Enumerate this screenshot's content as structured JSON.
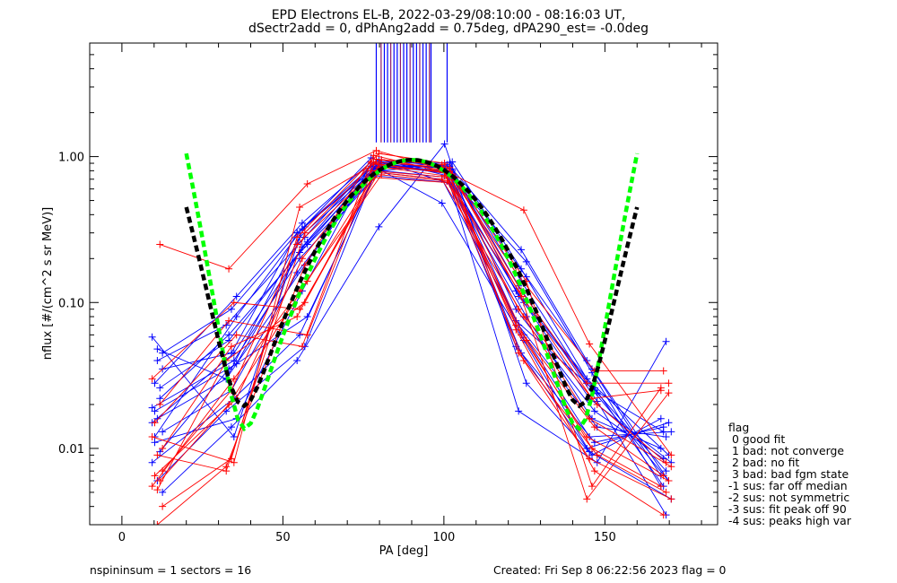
{
  "title_line1": "EPD Electrons EL-B, 2022-03-29/08:10:00 - 08:16:03 UT,",
  "title_line2": "dSectr2add = 0, dPhAng2add = 0.75deg, dPA290_est=  -0.0deg",
  "footer_left": "nspininsum =  1  sectors = 16",
  "footer_right": "Created: Fri Sep  8 06:22:56 2023   flag = 0",
  "legend": {
    "title": "flag",
    "items": [
      " 0 good fit",
      " 1 bad: not converge",
      " 2 bad: no fit",
      " 3 bad: bad fgm state",
      "-1 sus: far off median",
      "-2 sus: not symmetric",
      "-3 sus: fit peak off 90",
      "-4 sus: peaks high var"
    ]
  },
  "colors": {
    "red": "#ff0000",
    "blue": "#0000ff",
    "purple": "#8b1a6b",
    "green": "#00ff00",
    "black": "#000000"
  },
  "chart_data": {
    "type": "line",
    "xlabel": "PA [deg]",
    "ylabel": "nflux [#/(cm^2 s sr MeV)]",
    "xlim": [
      -10,
      185
    ],
    "ylim": [
      0.003,
      6.0
    ],
    "y_scale": "log",
    "x_ticks": [
      0,
      50,
      100,
      150
    ],
    "y_ticks": [
      0.01,
      0.1,
      1.0
    ],
    "y_tick_labels": [
      "0.01",
      "0.10",
      "1.00"
    ],
    "pa_bins": [
      11,
      34,
      56,
      79,
      101,
      124,
      146,
      169
    ],
    "series": [
      {
        "color": "blue",
        "values": [
          0.058,
          0.012,
          0.28,
          0.9,
          0.78,
          0.12,
          0.026,
          0.0055
        ]
      },
      {
        "color": "blue",
        "values": [
          0.048,
          0.03,
          0.33,
          0.85,
          0.8,
          0.14,
          0.028,
          0.006
        ]
      },
      {
        "color": "blue",
        "values": [
          0.035,
          0.045,
          0.3,
          0.95,
          0.86,
          0.15,
          0.035,
          0.0065
        ]
      },
      {
        "color": "blue",
        "values": [
          0.028,
          0.11,
          0.35,
          0.92,
          0.9,
          0.11,
          0.024,
          0.007
        ]
      },
      {
        "color": "blue",
        "values": [
          0.022,
          0.06,
          0.25,
          0.88,
          0.84,
          0.1,
          0.022,
          0.008
        ]
      },
      {
        "color": "blue",
        "values": [
          0.019,
          0.04,
          0.2,
          0.8,
          0.88,
          0.09,
          0.018,
          0.0085
        ]
      },
      {
        "color": "blue",
        "values": [
          0.016,
          0.03,
          0.18,
          0.82,
          0.92,
          0.17,
          0.03,
          0.009
        ]
      },
      {
        "color": "blue",
        "values": [
          0.013,
          0.025,
          0.16,
          0.86,
          0.78,
          0.08,
          0.016,
          0.01
        ]
      },
      {
        "color": "blue",
        "values": [
          0.011,
          0.016,
          0.12,
          0.9,
          0.76,
          0.07,
          0.014,
          0.012
        ]
      },
      {
        "color": "blue",
        "values": [
          0.0095,
          0.035,
          0.08,
          0.78,
          0.7,
          0.06,
          0.012,
          0.013
        ]
      },
      {
        "color": "blue",
        "values": [
          0.008,
          0.022,
          0.06,
          0.95,
          0.74,
          0.05,
          0.011,
          0.014
        ]
      },
      {
        "color": "blue",
        "values": [
          0.006,
          0.018,
          0.05,
          0.74,
          0.66,
          0.045,
          0.01,
          0.015
        ]
      },
      {
        "color": "blue",
        "values": [
          0.005,
          0.014,
          0.04,
          0.33,
          1.22,
          0.028,
          0.009,
          0.016
        ]
      },
      {
        "color": "blue",
        "values": [
          0.012,
          0.08,
          0.32,
          0.98,
          0.65,
          0.018,
          0.008,
          0.054
        ]
      },
      {
        "color": "blue",
        "values": [
          0.026,
          0.055,
          0.26,
          0.84,
          0.48,
          0.055,
          0.0095,
          0.0045
        ]
      },
      {
        "color": "blue",
        "values": [
          0.015,
          0.045,
          0.22,
          0.8,
          0.72,
          0.075,
          0.025,
          0.013
        ]
      },
      {
        "color": "blue",
        "values": [
          0.04,
          0.07,
          0.28,
          0.92,
          0.82,
          0.23,
          0.04,
          0.006
        ]
      },
      {
        "color": "blue",
        "values": [
          0.045,
          0.09,
          0.3,
          0.88,
          0.8,
          0.19,
          0.033,
          0.0055
        ]
      },
      {
        "color": "blue",
        "values": [
          0.018,
          0.038,
          0.24,
          0.86,
          0.86,
          0.13,
          0.021,
          0.0035
        ]
      },
      {
        "color": "red",
        "values": [
          0.25,
          0.17,
          0.65,
          1.1,
          0.82,
          0.43,
          0.052,
          0.009
        ]
      },
      {
        "color": "red",
        "values": [
          0.012,
          0.008,
          0.45,
          0.95,
          0.8,
          0.16,
          0.034,
          0.034
        ]
      },
      {
        "color": "red",
        "values": [
          0.009,
          0.007,
          0.3,
          0.9,
          0.76,
          0.12,
          0.028,
          0.028
        ]
      },
      {
        "color": "red",
        "values": [
          0.007,
          0.025,
          0.25,
          0.85,
          0.74,
          0.1,
          0.022,
          0.025
        ]
      },
      {
        "color": "red",
        "values": [
          0.0065,
          0.022,
          0.2,
          0.8,
          0.72,
          0.09,
          0.02,
          0.008
        ]
      },
      {
        "color": "red",
        "values": [
          0.006,
          0.02,
          0.14,
          0.78,
          0.7,
          0.08,
          0.016,
          0.0075
        ]
      },
      {
        "color": "red",
        "values": [
          0.0055,
          0.03,
          0.12,
          0.75,
          0.68,
          0.07,
          0.014,
          0.0065
        ]
      },
      {
        "color": "red",
        "values": [
          0.0052,
          0.04,
          0.1,
          0.72,
          0.66,
          0.06,
          0.012,
          0.006
        ]
      },
      {
        "color": "red",
        "values": [
          0.01,
          0.05,
          0.08,
          0.88,
          0.78,
          0.055,
          0.01,
          0.0055
        ]
      },
      {
        "color": "red",
        "values": [
          0.015,
          0.06,
          0.05,
          0.92,
          0.84,
          0.045,
          0.009,
          0.005
        ]
      },
      {
        "color": "red",
        "values": [
          0.02,
          0.075,
          0.06,
          0.96,
          0.88,
          0.04,
          0.0085,
          0.0045
        ]
      },
      {
        "color": "red",
        "values": [
          0.03,
          0.1,
          0.09,
          0.84,
          0.8,
          0.065,
          0.007,
          0.0035
        ]
      },
      {
        "color": "red",
        "values": [
          0.003,
          0.0075,
          0.18,
          1.02,
          0.76,
          0.11,
          0.0045,
          0.024
        ]
      },
      {
        "color": "red",
        "values": [
          0.004,
          0.0085,
          0.28,
          1.05,
          0.9,
          0.14,
          0.0055,
          0.026
        ]
      }
    ],
    "fit_curves": [
      {
        "color": "green",
        "x_range": [
          20,
          160
        ],
        "note": "fit"
      },
      {
        "color": "black",
        "x_range": [
          20,
          160
        ],
        "note": "fit"
      }
    ]
  }
}
